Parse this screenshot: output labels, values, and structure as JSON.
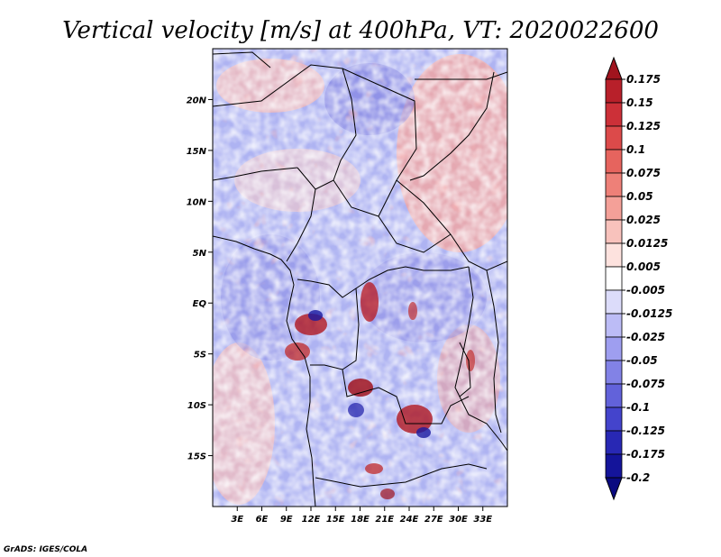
{
  "chart_data": {
    "type": "heatmap",
    "title": "Vertical velocity [m/s] at 400hPa, VT: 2020022600",
    "x_axis": {
      "range_deg_east": [
        0,
        36
      ],
      "tick_values": [
        3,
        6,
        9,
        12,
        15,
        18,
        21,
        24,
        27,
        30,
        33
      ],
      "tick_labels": [
        "3E",
        "6E",
        "9E",
        "12E",
        "15E",
        "18E",
        "21E",
        "24E",
        "27E",
        "30E",
        "33E"
      ]
    },
    "y_axis": {
      "range_deg_north": [
        -20,
        25
      ],
      "tick_values": [
        20,
        15,
        10,
        5,
        0,
        -5,
        -10,
        -15
      ],
      "tick_labels": [
        "20N",
        "15N",
        "10N",
        "5N",
        "EQ",
        "5S",
        "10S",
        "15S"
      ]
    },
    "colorbar": {
      "levels": [
        "0.175",
        "0.15",
        "0.125",
        "0.1",
        "0.075",
        "0.05",
        "0.025",
        "0.0125",
        "0.005",
        "-0.005",
        "-0.0125",
        "-0.025",
        "-0.05",
        "-0.075",
        "-0.1",
        "-0.125",
        "-0.175",
        "-0.2"
      ],
      "colors": [
        "#a0141e",
        "#b8202a",
        "#cc3038",
        "#dc4a4a",
        "#e6645e",
        "#ee8078",
        "#f4a098",
        "#f8c2bc",
        "#fde2de",
        "#ffffff",
        "#dcdcfa",
        "#bcbcf6",
        "#9e9ef0",
        "#8282e6",
        "#6262da",
        "#4444cc",
        "#2828b4",
        "#14149a",
        "#0a0a80"
      ]
    },
    "credit": "GrADS: IGES/COLA"
  }
}
